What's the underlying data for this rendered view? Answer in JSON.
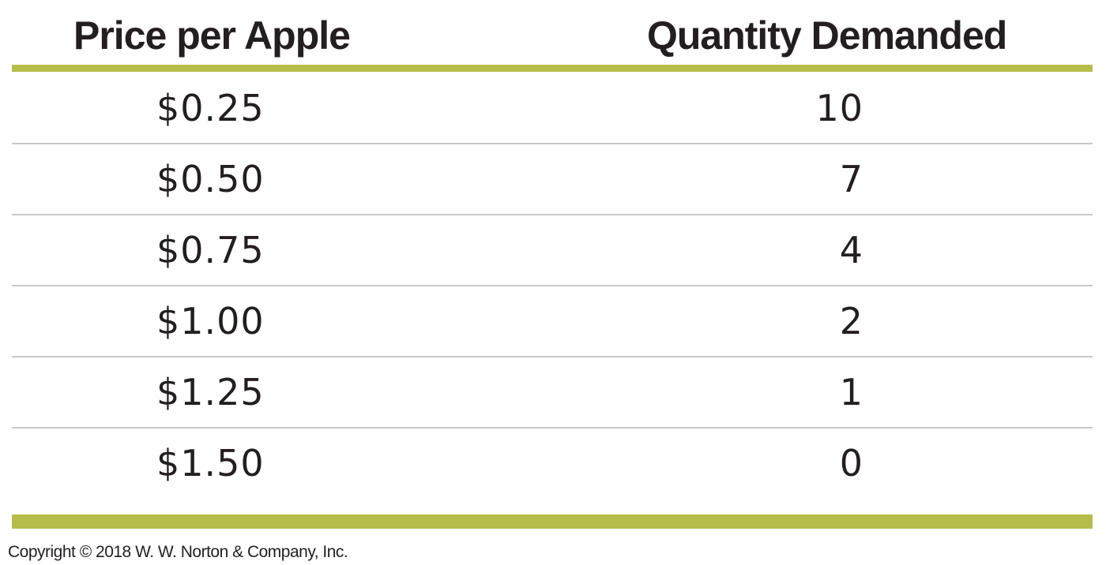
{
  "chart_data": {
    "type": "table",
    "columns": [
      "Price per Apple",
      "Quantity Demanded"
    ],
    "rows": [
      {
        "price": "$0.25",
        "quantity": "10"
      },
      {
        "price": "$0.50",
        "quantity": "7"
      },
      {
        "price": "$0.75",
        "quantity": "4"
      },
      {
        "price": "$1.00",
        "quantity": "2"
      },
      {
        "price": "$1.25",
        "quantity": "1"
      },
      {
        "price": "$1.50",
        "quantity": "0"
      }
    ]
  },
  "colors": {
    "rule": "#b5bd4a",
    "divider": "#c8c8c8",
    "text": "#231f20"
  },
  "footer": {
    "copyright": "Copyright © 2018 W. W. Norton & Company, Inc."
  }
}
